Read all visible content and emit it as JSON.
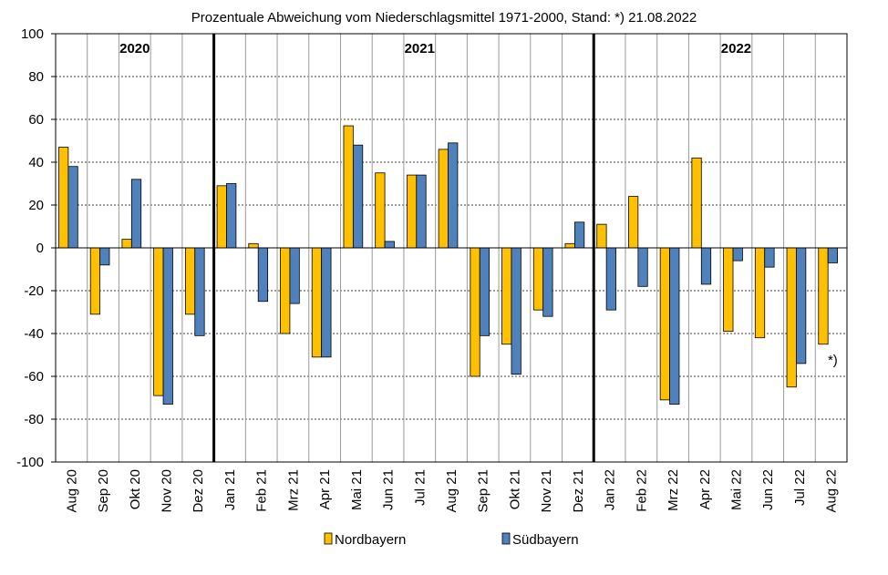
{
  "chart_data": {
    "type": "bar",
    "title": "Prozentuale Abweichung vom Niederschlagsmittel 1971-2000, Stand: *) 21.08.2022",
    "categories": [
      "Aug 20",
      "Sep 20",
      "Okt 20",
      "Nov 20",
      "Dez 20",
      "Jan 21",
      "Feb 21",
      "Mrz 21",
      "Apr 21",
      "Mai 21",
      "Jun 21",
      "Jul 21",
      "Aug 21",
      "Sep 21",
      "Okt 21",
      "Nov 21",
      "Dez 21",
      "Jan 22",
      "Feb 22",
      "Mrz 22",
      "Apr 22",
      "Mai 22",
      "Jun 22",
      "Jul 22",
      "Aug 22"
    ],
    "series": [
      {
        "name": "Nordbayern",
        "color": "#FFC000",
        "values": [
          47,
          -31,
          4,
          -69,
          -31,
          29,
          2,
          -40,
          -51,
          57,
          35,
          34,
          46,
          -60,
          -45,
          -29,
          2,
          11,
          24,
          -71,
          42,
          -39,
          -42,
          -65,
          -45
        ]
      },
      {
        "name": "Südbayern",
        "color": "#4F81BD",
        "values": [
          38,
          -8,
          32,
          -73,
          -41,
          30,
          -25,
          -26,
          -51,
          48,
          3,
          34,
          49,
          -41,
          -59,
          -32,
          12,
          -29,
          -18,
          -73,
          -17,
          -6,
          -9,
          -54,
          -7
        ]
      }
    ],
    "ylim": [
      -100,
      100
    ],
    "yticks": [
      100,
      80,
      60,
      40,
      20,
      0,
      -20,
      -40,
      -60,
      -80,
      -100
    ],
    "grid": true,
    "year_labels": [
      {
        "label": "2020",
        "center_index": 2
      },
      {
        "label": "2021",
        "center_index": 11
      },
      {
        "label": "2022",
        "center_index": 21
      }
    ],
    "year_dividers_after_index": [
      4,
      16
    ],
    "annotation": {
      "text": "*)",
      "index": 24
    },
    "legend": {
      "placement": "bottom",
      "items": [
        "Nordbayern",
        "Südbayern"
      ]
    }
  }
}
